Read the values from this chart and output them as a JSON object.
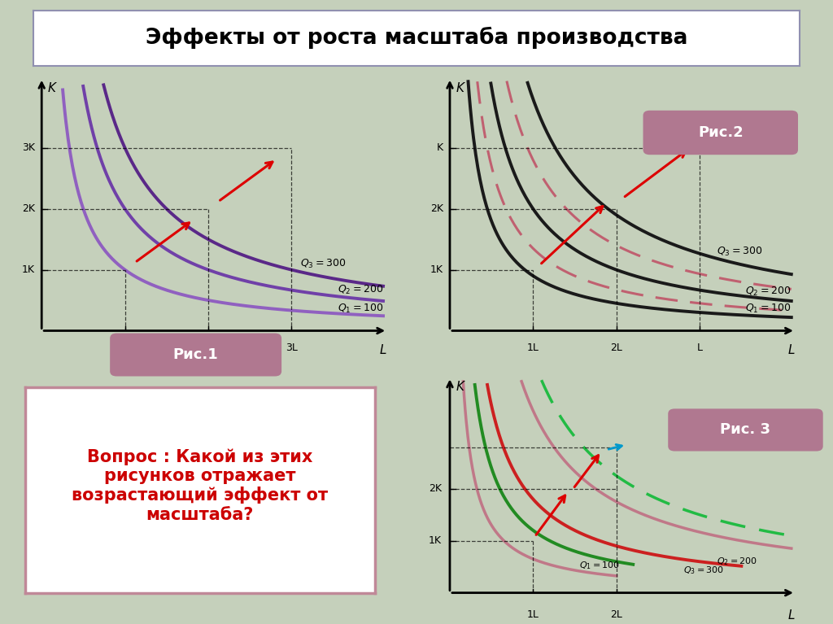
{
  "title": "Эффекты от роста масштаба производства",
  "bg_color": "#c5d0bb",
  "title_bg": "#ffffff",
  "fig1_label": "Рис.1",
  "fig2_label": "Рис.2",
  "fig3_label": "Рис. 3",
  "question_text": "Вопрос : Какой из этих\nрисунков отражает\nвозрастающий эффект от\nмасштаба?",
  "fig1_purple_light": "#9060c0",
  "fig1_purple_mid": "#7040a8",
  "fig1_purple_dark": "#5a2888",
  "fig2_black": "#1a1a1a",
  "fig2_dashed": "#c06070",
  "fig3_pink": "#c07888",
  "fig3_red": "#cc2020",
  "fig3_green_solid": "#228B22",
  "fig3_green_dash": "#22bb44",
  "label_box_color": "#b07890",
  "label_box_text": "#ffffff",
  "arrow_red": "#dd0000",
  "arrow_blue": "#0099cc"
}
